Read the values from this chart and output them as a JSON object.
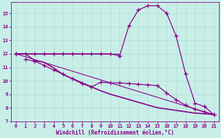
{
  "xlabel": "Windchill (Refroidissement éolien,°C)",
  "xlim": [
    -0.5,
    21.5
  ],
  "ylim": [
    7,
    15.8
  ],
  "xticks": [
    0,
    1,
    2,
    3,
    4,
    5,
    6,
    7,
    8,
    9,
    10,
    11,
    12,
    13,
    14,
    15,
    16,
    17,
    18,
    19,
    20,
    21
  ],
  "yticks": [
    7,
    8,
    9,
    10,
    11,
    12,
    13,
    14,
    15
  ],
  "bg_color": "#c8eee8",
  "grid_color": "#b0ddd4",
  "line_color": "#880088",
  "curve1_x": [
    0,
    1,
    2,
    3,
    4,
    5,
    6,
    7,
    8,
    9,
    10,
    11,
    12,
    13,
    14,
    15,
    16,
    17,
    18,
    19,
    20,
    21
  ],
  "curve1_y": [
    12.0,
    12.0,
    12.0,
    12.0,
    12.0,
    12.0,
    12.0,
    12.0,
    12.0,
    12.0,
    12.0,
    11.85,
    14.1,
    15.25,
    15.55,
    15.55,
    15.0,
    13.3,
    10.5,
    8.35,
    8.1,
    7.5
  ],
  "curve2_x": [
    1,
    2,
    3,
    4,
    5,
    6,
    7,
    8,
    9,
    10,
    11,
    12,
    13,
    14,
    15,
    16,
    17,
    18,
    19,
    20,
    21
  ],
  "curve2_y": [
    11.6,
    11.45,
    11.15,
    10.8,
    10.5,
    10.15,
    9.8,
    9.55,
    9.9,
    9.85,
    9.85,
    9.8,
    9.75,
    9.7,
    9.65,
    9.1,
    8.6,
    8.2,
    7.9,
    7.7,
    7.5
  ],
  "line3_x": [
    0,
    1,
    2,
    3,
    4,
    5,
    6,
    7,
    8,
    9,
    10,
    11,
    12,
    13,
    14,
    15,
    16,
    17,
    18,
    19,
    20,
    21
  ],
  "line3_y": [
    12.0,
    12.0,
    11.5,
    11.35,
    10.95,
    10.45,
    10.15,
    9.85,
    9.55,
    9.25,
    9.0,
    8.8,
    8.6,
    8.4,
    8.2,
    8.0,
    7.9,
    7.8,
    7.7,
    7.6,
    7.55,
    7.5
  ],
  "line4_x": [
    0,
    1,
    2,
    3,
    4,
    5,
    6,
    7,
    8,
    9,
    10,
    11,
    12,
    13,
    14,
    15,
    16,
    17,
    18,
    19,
    20,
    21
  ],
  "line4_y": [
    12.0,
    12.0,
    11.5,
    11.38,
    10.98,
    10.48,
    10.18,
    9.88,
    9.58,
    9.28,
    9.03,
    8.83,
    8.63,
    8.43,
    8.23,
    8.03,
    7.93,
    7.83,
    7.73,
    7.63,
    7.58,
    7.5
  ],
  "line5_x": [
    0,
    21
  ],
  "line5_y": [
    12.0,
    7.5
  ]
}
